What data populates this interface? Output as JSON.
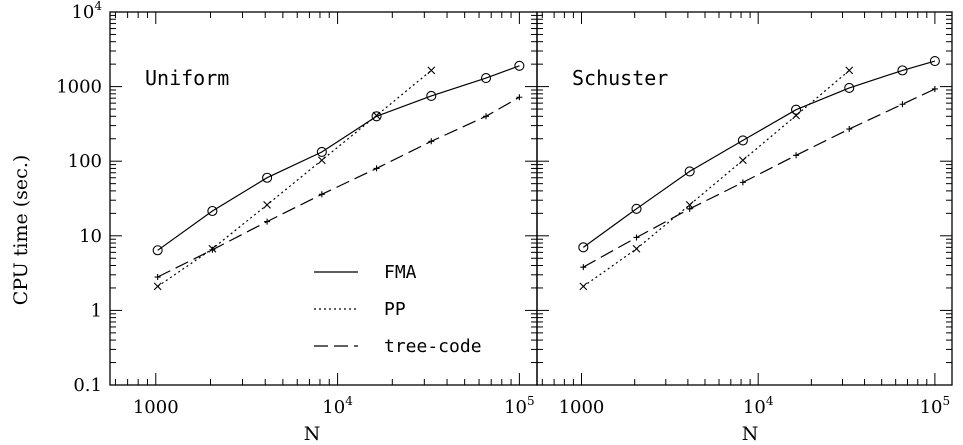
{
  "chart_data": {
    "type": "line",
    "ylabel": "CPU time (sec.)",
    "xlabel": "N",
    "x_scale": "log",
    "y_scale": "log",
    "xlim": [
      560,
      125000
    ],
    "ylim": [
      0.1,
      10000
    ],
    "x_ticks": [
      {
        "value": 1000,
        "label": "1000",
        "exp": ""
      },
      {
        "value": 10000,
        "label": "10",
        "exp": "4"
      },
      {
        "value": 100000,
        "label": "10",
        "exp": "5"
      }
    ],
    "y_ticks": [
      {
        "value": 0.1,
        "label": "0.1",
        "exp": ""
      },
      {
        "value": 1,
        "label": "1",
        "exp": ""
      },
      {
        "value": 10,
        "label": "10",
        "exp": ""
      },
      {
        "value": 100,
        "label": "100",
        "exp": ""
      },
      {
        "value": 1000,
        "label": "1000",
        "exp": ""
      },
      {
        "value": 10000,
        "label": "10",
        "exp": "4"
      }
    ],
    "legend": {
      "placement": "lower-right of left panel",
      "entries": [
        {
          "label": "FMA",
          "style": "solid"
        },
        {
          "label": "PP",
          "style": "dotted"
        },
        {
          "label": "tree-code",
          "style": "dashed"
        }
      ]
    },
    "panels": [
      {
        "title": "Uniform",
        "series": [
          {
            "name": "FMA",
            "style": "solid",
            "marker": "circle",
            "x": [
              1024,
              2048,
              4096,
              8192,
              16384,
              32768,
              65536,
              100000
            ],
            "y": [
              6.4,
              21.5,
              60,
              133,
              400,
              750,
              1300,
              1900
            ]
          },
          {
            "name": "PP",
            "style": "dotted",
            "marker": "cross",
            "x": [
              1024,
              2048,
              4096,
              8192,
              16384,
              32768
            ],
            "y": [
              2.1,
              6.7,
              26,
              103,
              410,
              1650
            ]
          },
          {
            "name": "tree-code",
            "style": "dashed",
            "marker": "plus",
            "x": [
              1024,
              2048,
              4096,
              8192,
              16384,
              32768,
              65536,
              100000
            ],
            "y": [
              2.8,
              6.5,
              15.5,
              36,
              80,
              185,
              400,
              720
            ]
          }
        ]
      },
      {
        "title": "Schuster",
        "series": [
          {
            "name": "FMA",
            "style": "solid",
            "marker": "circle",
            "x": [
              1024,
              2048,
              4096,
              8192,
              16384,
              32768,
              65536,
              100000
            ],
            "y": [
              7,
              23,
              73,
              190,
              490,
              960,
              1650,
              2200
            ]
          },
          {
            "name": "PP",
            "style": "dotted",
            "marker": "cross",
            "x": [
              1024,
              2048,
              4096,
              8192,
              16384,
              32768
            ],
            "y": [
              2.1,
              6.7,
              26,
              103,
              410,
              1650
            ]
          },
          {
            "name": "tree-code",
            "style": "dashed",
            "marker": "plus",
            "x": [
              1024,
              2048,
              4096,
              8192,
              16384,
              32768,
              65536,
              100000
            ],
            "y": [
              3.8,
              9.5,
              23,
              52,
              120,
              270,
              580,
              930
            ]
          }
        ]
      }
    ]
  }
}
